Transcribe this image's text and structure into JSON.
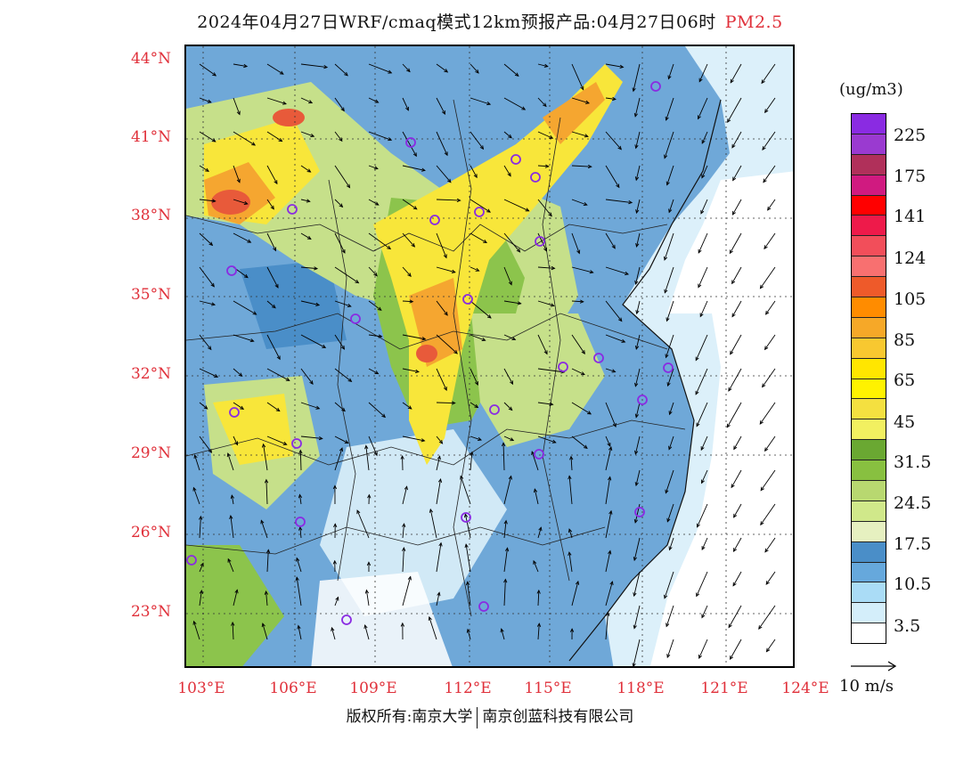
{
  "title": {
    "main": "2024年04月27日WRF/cmaq模式12km预报产品:04月27日06时",
    "pollutant": "PM2.5"
  },
  "map": {
    "lat_labels": [
      "44°N",
      "41°N",
      "38°N",
      "35°N",
      "32°N",
      "29°N",
      "26°N",
      "23°N"
    ],
    "lon_labels": [
      "103°E",
      "106°E",
      "109°E",
      "112°E",
      "115°E",
      "118°E",
      "121°E",
      "124°E"
    ],
    "colors": {
      "ocean": "#ffffff",
      "low": "#dcf0fa",
      "mid_blue": "#6fa8d8",
      "dark_blue": "#4a8ec8",
      "green_light": "#c6e08a",
      "green": "#8cc44c",
      "yellow": "#f8e63a",
      "orange": "#f5a630",
      "red": "#e85a3a",
      "site_marker": "#8a2be2"
    }
  },
  "legend": {
    "unit": "(ug/m3)",
    "colors": [
      "#8a2be2",
      "#9a3ad0",
      "#b0305a",
      "#d01a80",
      "#ff0000",
      "#ee1a4a",
      "#f24e5a",
      "#f87070",
      "#ee5a2a",
      "#ff8c00",
      "#f6a828",
      "#f8c830",
      "#ffe600",
      "#fff200",
      "#f4e040",
      "#f2f060",
      "#6aa832",
      "#88c040",
      "#b8d870",
      "#d0e88a",
      "#e6f0c0",
      "#4a8ec8",
      "#66a8dc",
      "#aadcf6",
      "#d4eefa",
      "#ffffff"
    ],
    "labels": [
      "225",
      "175",
      "141",
      "124",
      "105",
      "85",
      "65",
      "45",
      "31.5",
      "24.5",
      "17.5",
      "10.5",
      "3.5"
    ]
  },
  "wind_reference": {
    "label": "10 m/s"
  },
  "footer": {
    "copyright": "版权所有:南京大学",
    "company": "南京创蓝科技有限公司"
  }
}
